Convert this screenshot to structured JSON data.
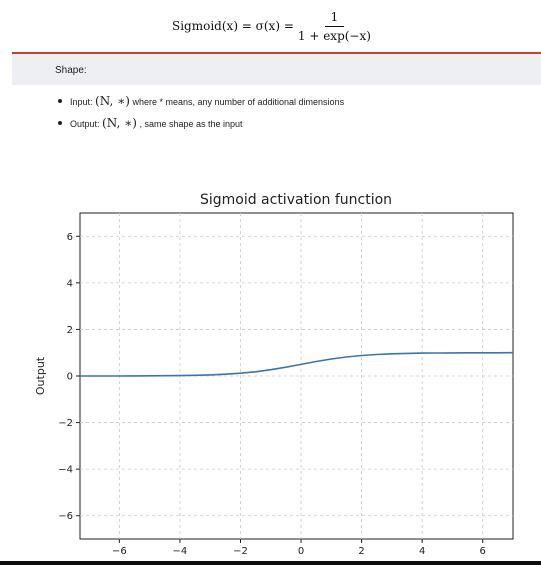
{
  "formula": {
    "lhs": "Sigmoid(x) = σ(x) =",
    "numerator": "1",
    "denominator": "1 + exp(−x)"
  },
  "shape": {
    "label": "Shape:",
    "input": {
      "label": "Input:",
      "math": "(N, ∗)",
      "text": "where * means, any number of additional dimensions"
    },
    "output": {
      "label": "Output:",
      "math": "(N, ∗)",
      "text": ", same shape as the input"
    }
  },
  "colors": {
    "accent_rule": "#c9403a",
    "band": "#eeeff3",
    "line": "#3b75af"
  },
  "chart_data": {
    "type": "line",
    "title": "Sigmoid activation function",
    "xlabel": "",
    "ylabel": "Output",
    "xlim": [
      -7.3,
      7.0
    ],
    "ylim": [
      -7.0,
      7.0
    ],
    "x_ticks": [
      -6,
      -4,
      -2,
      0,
      2,
      4,
      6
    ],
    "y_ticks": [
      -6,
      -4,
      -2,
      0,
      2,
      4,
      6
    ],
    "x_tick_labels": [
      "−6",
      "−4",
      "−2",
      "0",
      "2",
      "4",
      "6"
    ],
    "y_tick_labels": [
      "−6",
      "−4",
      "−2",
      "0",
      "2",
      "4",
      "6"
    ],
    "grid": true,
    "series": [
      {
        "x": [
          -7.3,
          -7,
          -6.5,
          -6,
          -5.5,
          -5,
          -4.5,
          -4,
          -3.5,
          -3,
          -2.5,
          -2,
          -1.5,
          -1,
          -0.5,
          0,
          0.5,
          1,
          1.5,
          2,
          2.5,
          3,
          3.5,
          4,
          4.5,
          5,
          5.5,
          6,
          6.5,
          7
        ],
        "y": [
          0.001,
          0.001,
          0.002,
          0.002,
          0.004,
          0.007,
          0.011,
          0.018,
          0.029,
          0.047,
          0.076,
          0.119,
          0.182,
          0.269,
          0.378,
          0.5,
          0.622,
          0.731,
          0.818,
          0.881,
          0.924,
          0.953,
          0.971,
          0.982,
          0.989,
          0.993,
          0.996,
          0.998,
          0.998,
          0.999
        ]
      }
    ]
  }
}
